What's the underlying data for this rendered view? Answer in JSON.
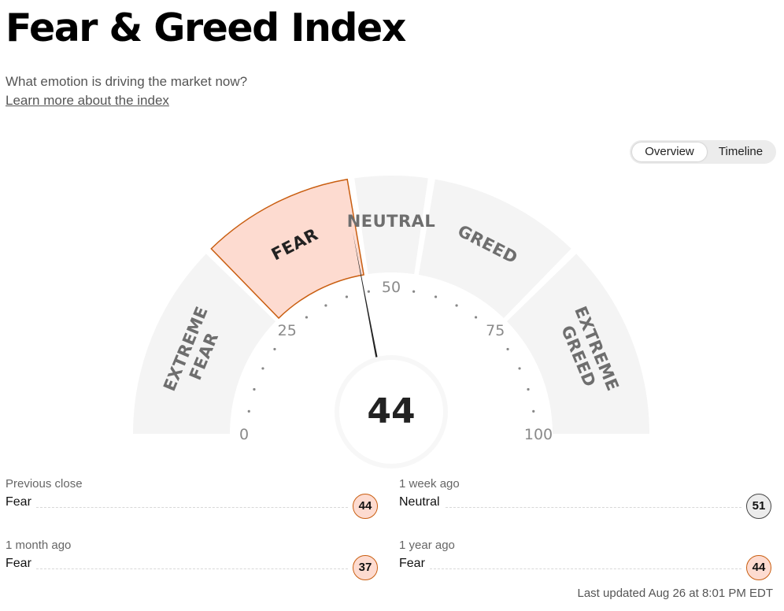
{
  "header": {
    "title": "Fear & Greed Index",
    "subtitle": "What emotion is driving the market now?",
    "learn_more": "Learn more about the index"
  },
  "toggle": {
    "overview": "Overview",
    "timeline": "Timeline",
    "active": "Overview"
  },
  "gauge": {
    "value": 44,
    "value_label": "44",
    "active_segment": "FEAR",
    "segments": [
      {
        "lines": [
          "EXTREME",
          "FEAR"
        ],
        "range": [
          0,
          25
        ]
      },
      {
        "lines": [
          "FEAR"
        ],
        "range": [
          25,
          45
        ]
      },
      {
        "lines": [
          "NEUTRAL"
        ],
        "range": [
          45,
          55
        ]
      },
      {
        "lines": [
          "GREED"
        ],
        "range": [
          55,
          75
        ]
      },
      {
        "lines": [
          "EXTREME",
          "GREED"
        ],
        "range": [
          75,
          100
        ]
      }
    ],
    "ticks": [
      {
        "value": 0,
        "label": "0"
      },
      {
        "value": 25,
        "label": "25"
      },
      {
        "value": 50,
        "label": "50"
      },
      {
        "value": 75,
        "label": "75"
      },
      {
        "value": 100,
        "label": "100"
      }
    ],
    "colors": {
      "segment_fill": "#f4f4f4",
      "active_fill": "#fddbd0",
      "active_border": "#c95e10",
      "needle": "#222222",
      "inner_ring": "#ffffff",
      "label_color": "#6e6e6e",
      "active_label_color": "#222222"
    }
  },
  "stats": [
    {
      "label": "Previous close",
      "value": "Fear",
      "score": "44",
      "badge_fill": "#fddbd0",
      "badge_border": "#c95e10"
    },
    {
      "label": "1 week ago",
      "value": "Neutral",
      "score": "51",
      "badge_fill": "#ececec",
      "badge_border": "#444444"
    },
    {
      "label": "1 month ago",
      "value": "Fear",
      "score": "37",
      "badge_fill": "#fddbd0",
      "badge_border": "#c95e10"
    },
    {
      "label": "1 year ago",
      "value": "Fear",
      "score": "44",
      "badge_fill": "#fddbd0",
      "badge_border": "#c95e10"
    }
  ],
  "footer": {
    "last_updated": "Last updated Aug 26 at 8:01 PM EDT"
  }
}
